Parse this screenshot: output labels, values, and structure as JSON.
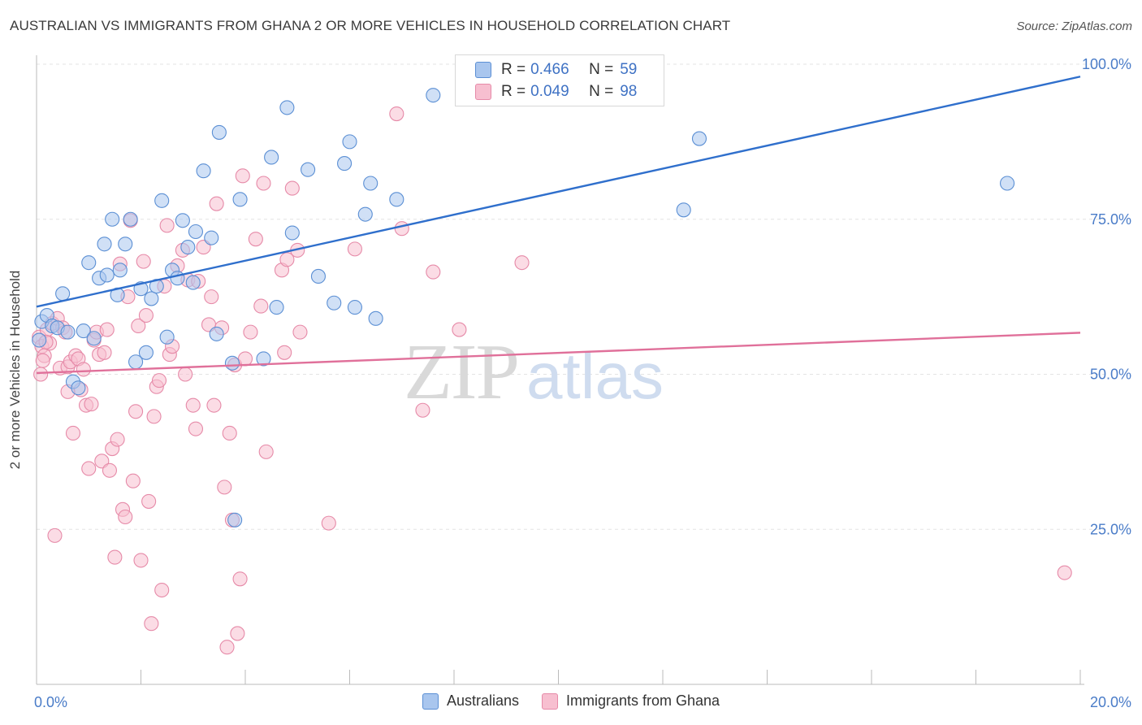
{
  "header": {
    "title": "AUSTRALIAN VS IMMIGRANTS FROM GHANA 2 OR MORE VEHICLES IN HOUSEHOLD CORRELATION CHART",
    "source": "Source: ZipAtlas.com"
  },
  "colors": {
    "australians_fill": "#a9c6ee",
    "australians_stroke": "#5b8fd4",
    "australians_line": "#2f6fcc",
    "ghana_fill": "#f7bfd0",
    "ghana_stroke": "#e68aa8",
    "ghana_line": "#e0709a",
    "axis_text": "#4a7cc8",
    "grid": "#e3e3e3"
  },
  "legend_top": {
    "rows": [
      {
        "r_label": "R =",
        "r_value": "0.466",
        "n_label": "N =",
        "n_value": "59"
      },
      {
        "r_label": "R =",
        "r_value": "0.049",
        "n_label": "N =",
        "n_value": "98"
      }
    ]
  },
  "legend_bottom": {
    "items": [
      "Australians",
      "Immigrants from Ghana"
    ]
  },
  "watermark": {
    "part1": "ZIP",
    "part2": "atlas"
  },
  "chart_data": {
    "type": "scatter",
    "title": "AUSTRALIAN VS IMMIGRANTS FROM GHANA 2 OR MORE VEHICLES IN HOUSEHOLD CORRELATION CHART",
    "xlabel": "",
    "ylabel": "2 or more Vehicles in Household",
    "xlim": [
      0,
      20
    ],
    "ylim": [
      0,
      100
    ],
    "x_ticks": [
      0,
      20
    ],
    "x_tick_labels": [
      "0.0%",
      "20.0%"
    ],
    "y_ticks": [
      25,
      50,
      75,
      100
    ],
    "y_tick_labels": [
      "25.0%",
      "50.0%",
      "75.0%",
      "100.0%"
    ],
    "grid": true,
    "legend_position": "top-center",
    "series": [
      {
        "name": "Australians",
        "r": 0.466,
        "n": 59,
        "trend": [
          [
            0,
            60.9
          ],
          [
            20,
            98.0
          ]
        ],
        "points": [
          [
            0.1,
            58.5
          ],
          [
            0.2,
            59.5
          ],
          [
            0.3,
            57.8
          ],
          [
            0.4,
            57.5
          ],
          [
            0.5,
            63.0
          ],
          [
            0.6,
            56.8
          ],
          [
            0.7,
            48.8
          ],
          [
            0.8,
            47.8
          ],
          [
            0.9,
            57.0
          ],
          [
            1.0,
            68.0
          ],
          [
            1.1,
            55.8
          ],
          [
            1.2,
            65.5
          ],
          [
            1.3,
            71.0
          ],
          [
            1.35,
            66.0
          ],
          [
            1.45,
            75.0
          ],
          [
            1.55,
            62.8
          ],
          [
            1.6,
            66.8
          ],
          [
            1.7,
            71.0
          ],
          [
            1.8,
            75.0
          ],
          [
            1.9,
            52.0
          ],
          [
            2.0,
            63.8
          ],
          [
            2.1,
            53.5
          ],
          [
            2.2,
            62.2
          ],
          [
            2.3,
            64.2
          ],
          [
            2.4,
            78.0
          ],
          [
            2.5,
            56.0
          ],
          [
            2.6,
            66.8
          ],
          [
            2.7,
            65.5
          ],
          [
            2.8,
            74.8
          ],
          [
            2.9,
            70.5
          ],
          [
            3.0,
            64.8
          ],
          [
            3.05,
            73.0
          ],
          [
            3.2,
            82.8
          ],
          [
            3.35,
            72.0
          ],
          [
            3.45,
            56.5
          ],
          [
            3.5,
            89.0
          ],
          [
            3.75,
            51.8
          ],
          [
            3.8,
            26.5
          ],
          [
            3.9,
            78.2
          ],
          [
            4.35,
            52.5
          ],
          [
            4.5,
            85.0
          ],
          [
            4.6,
            60.8
          ],
          [
            4.8,
            93.0
          ],
          [
            4.9,
            72.8
          ],
          [
            5.2,
            83.0
          ],
          [
            5.4,
            65.8
          ],
          [
            5.7,
            61.5
          ],
          [
            5.9,
            84.0
          ],
          [
            6.0,
            87.5
          ],
          [
            6.1,
            60.8
          ],
          [
            6.3,
            75.8
          ],
          [
            6.4,
            80.8
          ],
          [
            6.5,
            59.0
          ],
          [
            6.9,
            78.2
          ],
          [
            7.6,
            95.0
          ],
          [
            12.4,
            76.5
          ],
          [
            12.7,
            88.0
          ],
          [
            18.6,
            80.8
          ],
          [
            0.05,
            55.5
          ]
        ]
      },
      {
        "name": "Immigrants from Ghana",
        "r": 0.049,
        "n": 98,
        "trend": [
          [
            0,
            50.2
          ],
          [
            20,
            56.7
          ]
        ],
        "points": [
          [
            0.05,
            56.0
          ],
          [
            0.1,
            54.5
          ],
          [
            0.15,
            53.0
          ],
          [
            0.2,
            57.2
          ],
          [
            0.25,
            55.0
          ],
          [
            0.3,
            58.2
          ],
          [
            0.35,
            24.0
          ],
          [
            0.4,
            59.0
          ],
          [
            0.45,
            51.0
          ],
          [
            0.5,
            57.5
          ],
          [
            0.55,
            56.8
          ],
          [
            0.6,
            51.2
          ],
          [
            0.65,
            52.0
          ],
          [
            0.7,
            40.5
          ],
          [
            0.75,
            53.0
          ],
          [
            0.8,
            52.5
          ],
          [
            0.85,
            47.5
          ],
          [
            0.9,
            50.8
          ],
          [
            0.95,
            45.0
          ],
          [
            1.0,
            34.8
          ],
          [
            1.05,
            45.2
          ],
          [
            1.1,
            55.5
          ],
          [
            1.15,
            56.8
          ],
          [
            1.2,
            53.2
          ],
          [
            1.25,
            36.0
          ],
          [
            1.3,
            53.5
          ],
          [
            1.35,
            57.2
          ],
          [
            1.4,
            34.5
          ],
          [
            1.45,
            38.0
          ],
          [
            1.5,
            20.5
          ],
          [
            1.55,
            39.5
          ],
          [
            1.6,
            67.8
          ],
          [
            1.65,
            28.2
          ],
          [
            1.7,
            27.0
          ],
          [
            1.75,
            62.5
          ],
          [
            1.8,
            74.8
          ],
          [
            1.85,
            32.8
          ],
          [
            1.9,
            44.0
          ],
          [
            1.95,
            57.8
          ],
          [
            2.0,
            20.0
          ],
          [
            2.05,
            68.2
          ],
          [
            2.1,
            59.5
          ],
          [
            2.15,
            29.5
          ],
          [
            2.2,
            9.8
          ],
          [
            2.25,
            43.2
          ],
          [
            2.3,
            48.0
          ],
          [
            2.35,
            49.0
          ],
          [
            2.4,
            15.2
          ],
          [
            2.45,
            64.2
          ],
          [
            2.5,
            74.0
          ],
          [
            2.55,
            53.2
          ],
          [
            2.6,
            54.5
          ],
          [
            2.7,
            67.5
          ],
          [
            2.8,
            70.0
          ],
          [
            2.85,
            50.0
          ],
          [
            2.9,
            65.2
          ],
          [
            3.0,
            45.0
          ],
          [
            3.05,
            41.2
          ],
          [
            3.1,
            65.0
          ],
          [
            3.2,
            70.5
          ],
          [
            3.3,
            58.0
          ],
          [
            3.35,
            62.5
          ],
          [
            3.4,
            45.0
          ],
          [
            3.45,
            77.5
          ],
          [
            3.55,
            57.5
          ],
          [
            3.6,
            31.8
          ],
          [
            3.65,
            6.0
          ],
          [
            3.7,
            40.5
          ],
          [
            3.75,
            26.5
          ],
          [
            3.8,
            51.5
          ],
          [
            3.85,
            8.2
          ],
          [
            3.9,
            17.0
          ],
          [
            3.95,
            82.0
          ],
          [
            4.0,
            52.5
          ],
          [
            4.1,
            56.8
          ],
          [
            4.2,
            71.8
          ],
          [
            4.3,
            61.0
          ],
          [
            4.35,
            80.8
          ],
          [
            4.4,
            37.5
          ],
          [
            4.7,
            66.8
          ],
          [
            4.75,
            53.5
          ],
          [
            4.8,
            68.5
          ],
          [
            4.9,
            80.0
          ],
          [
            5.0,
            70.0
          ],
          [
            5.05,
            56.8
          ],
          [
            5.6,
            26.0
          ],
          [
            6.1,
            70.2
          ],
          [
            6.9,
            92.0
          ],
          [
            7.0,
            73.5
          ],
          [
            7.4,
            44.2
          ],
          [
            7.6,
            66.5
          ],
          [
            8.1,
            57.2
          ],
          [
            9.3,
            68.0
          ],
          [
            19.7,
            18.0
          ],
          [
            0.08,
            50.0
          ],
          [
            0.12,
            52.2
          ],
          [
            0.18,
            55.2
          ],
          [
            0.6,
            47.2
          ]
        ]
      }
    ]
  }
}
